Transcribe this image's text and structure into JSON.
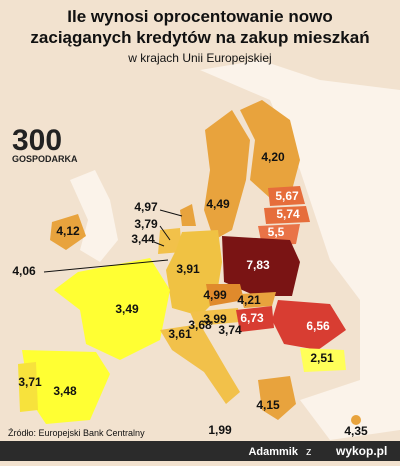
{
  "header": {
    "title_line1": "Ile wynosi oprocentowanie nowo",
    "title_line2": "zaciąganych kredytów na zakup mieszkań",
    "subtitle": "w krajach Unii Europejskiej"
  },
  "logo": {
    "number": "300",
    "name": "GOSPODARKA"
  },
  "rates": [
    "4,20",
    "4,49",
    "5,67",
    "5,74",
    "5,5",
    "4,12",
    "4,97",
    "3,79",
    "3,44",
    "4,06",
    "3,91",
    "7,83",
    "4,99",
    "4,21",
    "3,99",
    "6,73",
    "6,56",
    "3,49",
    "3,68",
    "3,74",
    "3,61",
    "3,71",
    "3,48",
    "2,51",
    "4,15",
    "1,99",
    "4,35"
  ],
  "source": "Źródło: Europejski Bank Centralny",
  "footer": {
    "author": "Adammik",
    "connector": "z",
    "site": "wykop.pl"
  }
}
